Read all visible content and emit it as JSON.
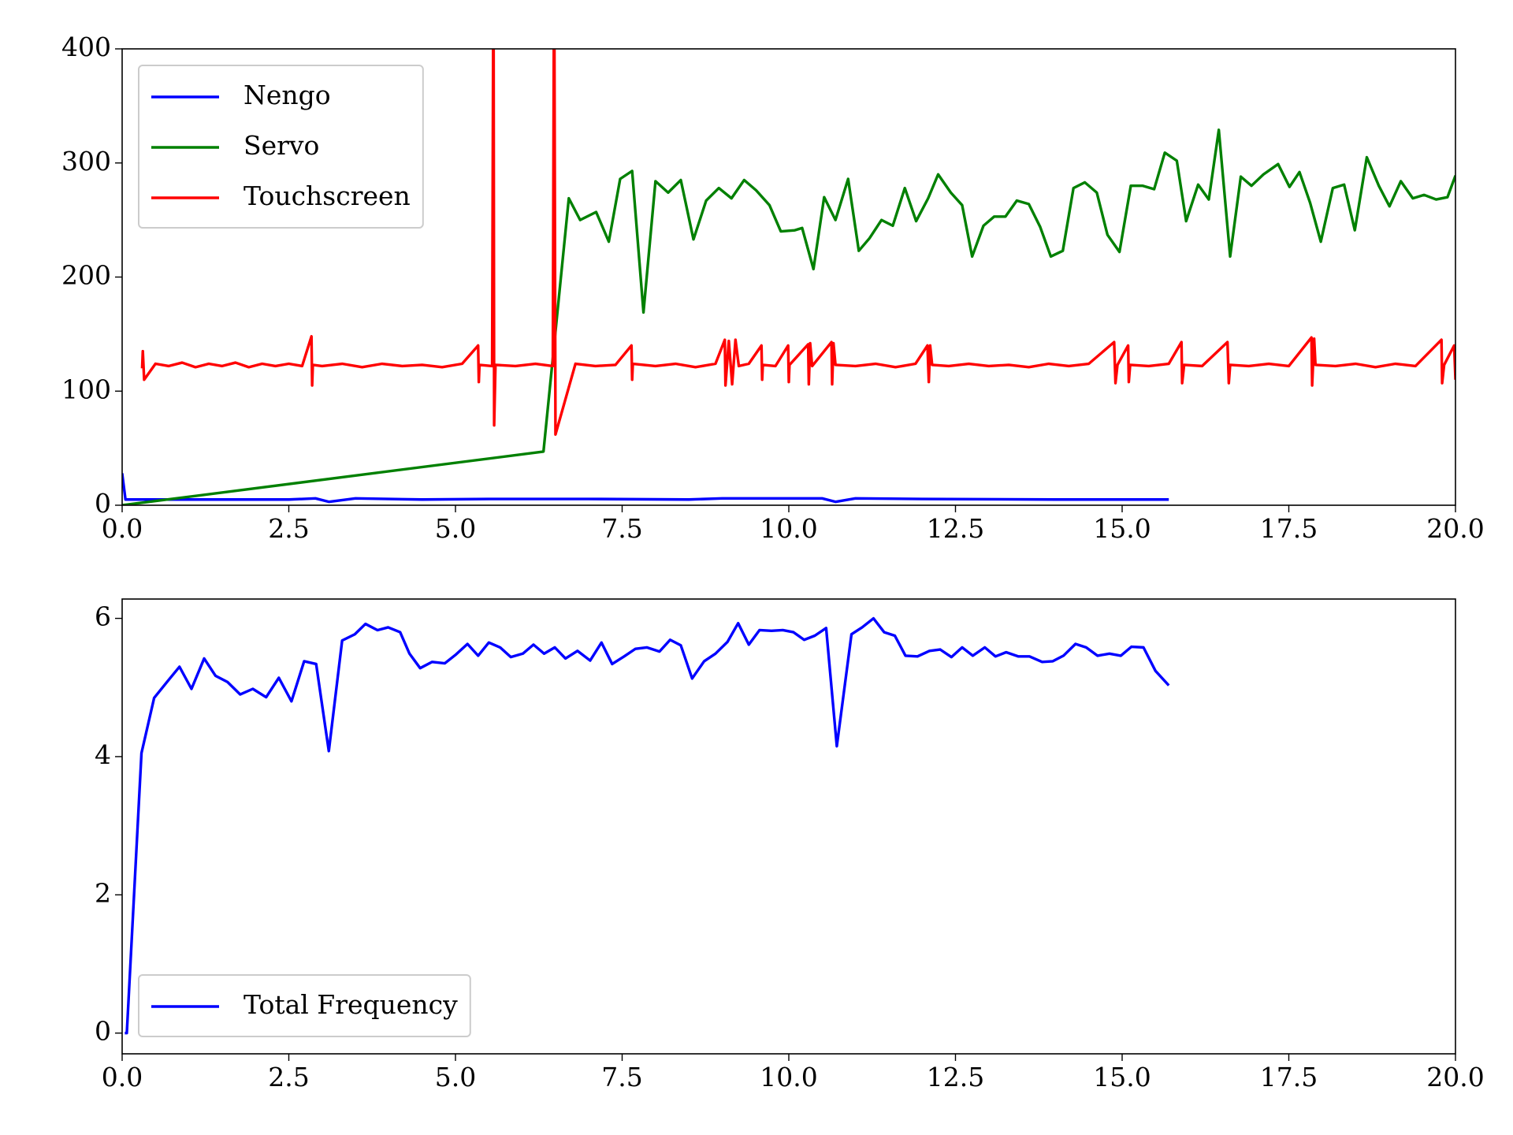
{
  "chart_data": [
    {
      "type": "line",
      "legend": "upper left",
      "grid": false,
      "xlim": [
        0,
        20
      ],
      "ylim": [
        0,
        400
      ],
      "xticks": [
        {
          "value": 0,
          "label": "0.0"
        },
        {
          "value": 2.5,
          "label": "2.5"
        },
        {
          "value": 5,
          "label": "5.0"
        },
        {
          "value": 7.5,
          "label": "7.5"
        },
        {
          "value": 10,
          "label": "10.0"
        },
        {
          "value": 12.5,
          "label": "12.5"
        },
        {
          "value": 15,
          "label": "15.0"
        },
        {
          "value": 17.5,
          "label": "17.5"
        },
        {
          "value": 20,
          "label": "20.0"
        }
      ],
      "yticks": [
        0,
        100,
        200,
        300,
        400
      ],
      "series": [
        {
          "name": "Nengo",
          "color": "#0000ff",
          "x": [
            0,
            0.05,
            0.5,
            1.5,
            2.5,
            2.9,
            3.1,
            3.5,
            4.5,
            5.5,
            7,
            8.5,
            9,
            10.5,
            10.7,
            11,
            12,
            14,
            15.7
          ],
          "values": [
            28,
            5,
            5,
            5,
            5,
            6,
            3,
            6,
            5,
            5.5,
            5.5,
            5,
            6,
            6,
            3,
            6,
            5.5,
            5,
            5
          ]
        },
        {
          "name": "Servo",
          "color": "#008000",
          "x": [
            0,
            6.32,
            6.7,
            6.87,
            7.11,
            7.3,
            7.47,
            7.65,
            7.82,
            8.0,
            8.19,
            8.38,
            8.57,
            8.76,
            8.95,
            9.14,
            9.33,
            9.51,
            9.71,
            9.88,
            10.09,
            10.2,
            10.37,
            10.53,
            10.7,
            10.89,
            11.05,
            11.21,
            11.39,
            11.56,
            11.74,
            11.91,
            12.09,
            12.24,
            12.43,
            12.6,
            12.75,
            12.92,
            13.08,
            13.25,
            13.42,
            13.6,
            13.77,
            13.93,
            14.11,
            14.27,
            14.44,
            14.62,
            14.78,
            14.96,
            15.13,
            15.31,
            15.48,
            15.64,
            15.82,
            15.96,
            16.14,
            16.3,
            16.45,
            16.62,
            16.78,
            16.94,
            17.12,
            17.34,
            17.51,
            17.66,
            17.82,
            17.98,
            18.16,
            18.33,
            18.49,
            18.67,
            18.85,
            19.01,
            19.18,
            19.36,
            19.53,
            19.71,
            19.88,
            20
          ],
          "values": [
            0,
            47,
            269,
            250,
            257,
            231,
            286,
            293,
            169,
            284,
            274,
            285,
            233,
            267,
            278,
            269,
            285,
            276,
            263,
            240,
            241,
            243,
            207,
            270,
            250,
            286,
            223,
            234,
            250,
            245,
            278,
            249,
            269,
            290,
            274,
            263,
            218,
            245,
            253,
            253,
            267,
            264,
            244,
            218,
            223,
            278,
            283,
            274,
            237,
            222,
            280,
            280,
            277,
            309,
            302,
            249,
            281,
            268,
            329,
            218,
            288,
            280,
            290,
            299,
            279,
            292,
            265,
            231,
            278,
            281,
            241,
            305,
            280,
            262,
            284,
            269,
            272,
            268,
            270,
            289
          ]
        },
        {
          "name": "Touchscreen",
          "color": "#ff0000",
          "x": [
            0.3,
            0.31,
            0.33,
            0.5,
            0.7,
            0.9,
            1.1,
            1.3,
            1.5,
            1.7,
            1.9,
            2.1,
            2.3,
            2.5,
            2.7,
            2.84,
            2.85,
            2.86,
            3.0,
            3.3,
            3.6,
            3.9,
            4.2,
            4.5,
            4.8,
            5.1,
            5.34,
            5.35,
            5.36,
            5.55,
            5.57,
            5.58,
            5.6,
            5.9,
            6.2,
            6.46,
            6.48,
            6.5,
            6.8,
            7.1,
            7.4,
            7.64,
            7.65,
            7.66,
            8.0,
            8.3,
            8.6,
            8.9,
            9.04,
            9.05,
            9.1,
            9.15,
            9.2,
            9.25,
            9.4,
            9.59,
            9.6,
            9.61,
            9.8,
            9.99,
            10.0,
            10.01,
            10.29,
            10.3,
            10.32,
            10.35,
            10.64,
            10.65,
            10.67,
            10.7,
            11.0,
            11.3,
            11.6,
            11.9,
            12.08,
            12.1,
            12.12,
            12.15,
            12.4,
            12.7,
            13.0,
            13.3,
            13.6,
            13.9,
            14.2,
            14.5,
            14.88,
            14.9,
            14.93,
            15.09,
            15.1,
            15.12,
            15.4,
            15.7,
            15.89,
            15.9,
            15.93,
            16.2,
            16.58,
            16.6,
            16.62,
            16.9,
            17.2,
            17.5,
            17.84,
            17.85,
            17.88,
            17.9,
            18.2,
            18.5,
            18.8,
            19.1,
            19.4,
            19.79,
            19.8,
            19.83,
            19.98,
            20.0
          ],
          "values": [
            120,
            135,
            110,
            124,
            122,
            125,
            121,
            124,
            122,
            125,
            121,
            124,
            122,
            124,
            122,
            148,
            105,
            123,
            122,
            124,
            121,
            124,
            122,
            123,
            121,
            124,
            140,
            108,
            123,
            122,
            500,
            70,
            123,
            122,
            124,
            122,
            500,
            62,
            124,
            122,
            123,
            140,
            110,
            124,
            122,
            124,
            121,
            124,
            145,
            105,
            144,
            106,
            145,
            122,
            124,
            140,
            110,
            123,
            122,
            140,
            108,
            123,
            141,
            106,
            142,
            122,
            143,
            106,
            142,
            123,
            122,
            124,
            121,
            124,
            140,
            108,
            140,
            123,
            122,
            124,
            122,
            123,
            121,
            124,
            122,
            124,
            143,
            107,
            123,
            140,
            108,
            123,
            122,
            124,
            143,
            107,
            123,
            122,
            143,
            107,
            123,
            122,
            124,
            122,
            147,
            105,
            146,
            123,
            122,
            124,
            121,
            124,
            122,
            145,
            107,
            123,
            140,
            110
          ]
        }
      ]
    },
    {
      "type": "line",
      "legend": "lower left",
      "grid": false,
      "xlim": [
        0,
        20
      ],
      "ylim": [
        -0.3,
        6.28
      ],
      "xticks": [
        {
          "value": 0,
          "label": "0.0"
        },
        {
          "value": 2.5,
          "label": "2.5"
        },
        {
          "value": 5,
          "label": "5.0"
        },
        {
          "value": 7.5,
          "label": "7.5"
        },
        {
          "value": 10,
          "label": "10.0"
        },
        {
          "value": 12.5,
          "label": "12.5"
        },
        {
          "value": 15,
          "label": "15.0"
        },
        {
          "value": 17.5,
          "label": "17.5"
        },
        {
          "value": 20,
          "label": "20.0"
        }
      ],
      "yticks": [
        0,
        2,
        4,
        6
      ],
      "series": [
        {
          "name": "Total Frequency",
          "color": "#0000ff",
          "x": [
            0.04,
            0.07,
            0.29,
            0.48,
            0.69,
            0.86,
            1.04,
            1.23,
            1.4,
            1.58,
            1.77,
            1.96,
            2.16,
            2.35,
            2.54,
            2.73,
            2.91,
            3.1,
            3.3,
            3.49,
            3.65,
            3.83,
            3.99,
            4.17,
            4.31,
            4.47,
            4.65,
            4.84,
            5.01,
            5.18,
            5.34,
            5.5,
            5.67,
            5.83,
            6.01,
            6.17,
            6.33,
            6.49,
            6.65,
            6.83,
            7.02,
            7.19,
            7.35,
            7.53,
            7.7,
            7.87,
            8.06,
            8.22,
            8.38,
            8.55,
            8.73,
            8.9,
            9.08,
            9.24,
            9.4,
            9.56,
            9.74,
            9.91,
            10.07,
            10.23,
            10.39,
            10.56,
            10.72,
            10.94,
            11.1,
            11.27,
            11.43,
            11.59,
            11.75,
            11.93,
            12.11,
            12.27,
            12.44,
            12.6,
            12.76,
            12.94,
            13.1,
            13.26,
            13.44,
            13.61,
            13.8,
            13.96,
            14.12,
            14.3,
            14.46,
            14.63,
            14.81,
            14.98,
            15.14,
            15.32,
            15.5,
            15.7
          ],
          "values": [
            0,
            0,
            4.05,
            4.85,
            5.1,
            5.3,
            4.98,
            5.42,
            5.17,
            5.08,
            4.9,
            4.98,
            4.86,
            5.14,
            4.8,
            5.38,
            5.34,
            4.08,
            5.68,
            5.77,
            5.92,
            5.83,
            5.87,
            5.8,
            5.49,
            5.28,
            5.37,
            5.35,
            5.48,
            5.63,
            5.46,
            5.65,
            5.58,
            5.44,
            5.49,
            5.62,
            5.49,
            5.58,
            5.42,
            5.53,
            5.39,
            5.65,
            5.34,
            5.45,
            5.56,
            5.58,
            5.52,
            5.69,
            5.61,
            5.13,
            5.38,
            5.49,
            5.66,
            5.93,
            5.62,
            5.83,
            5.82,
            5.83,
            5.8,
            5.69,
            5.75,
            5.86,
            4.15,
            5.77,
            5.87,
            6.0,
            5.8,
            5.75,
            5.46,
            5.45,
            5.53,
            5.55,
            5.44,
            5.58,
            5.46,
            5.58,
            5.45,
            5.51,
            5.45,
            5.45,
            5.37,
            5.38,
            5.46,
            5.63,
            5.58,
            5.46,
            5.49,
            5.46,
            5.59,
            5.58,
            5.24,
            5.03
          ]
        }
      ]
    }
  ]
}
